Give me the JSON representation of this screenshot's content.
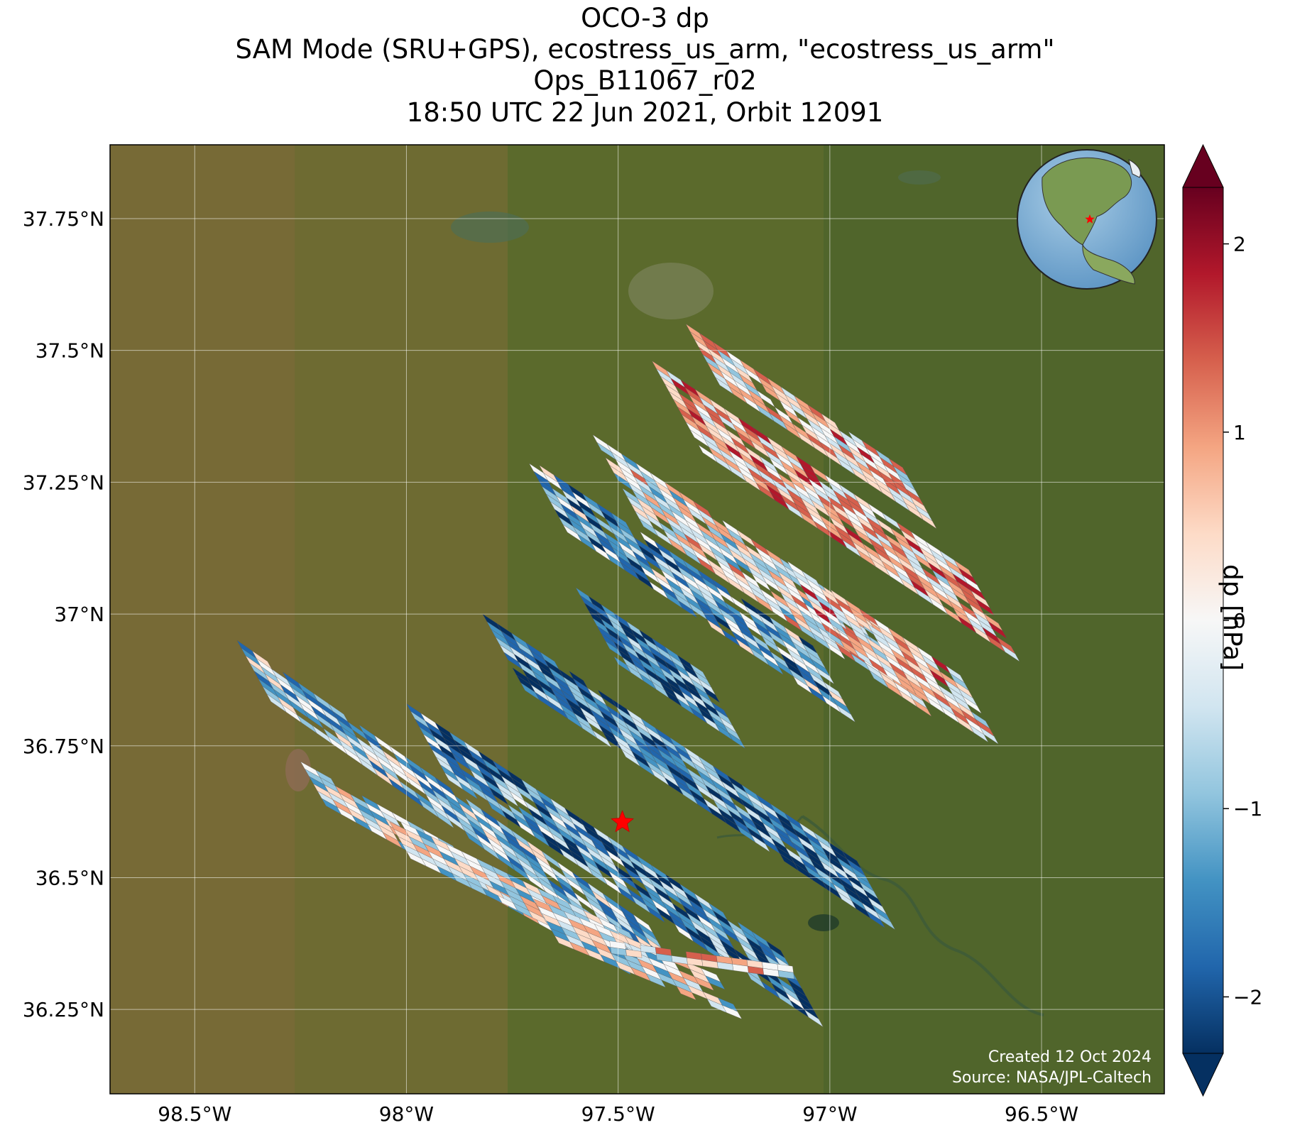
{
  "title": {
    "line1": "OCO-3 dp",
    "line2": "SAM Mode (SRU+GPS), ecostress_us_arm, \"ecostress_us_arm\"",
    "line3": "Ops_B11067_r02",
    "line4": "18:50 UTC 22 Jun 2021, Orbit 12091"
  },
  "map": {
    "extent": {
      "lon": [
        -98.7,
        -96.21
      ],
      "lat": [
        36.09,
        37.89
      ]
    },
    "lat_ticks": [
      {
        "value": 37.75,
        "label": "37.75°N"
      },
      {
        "value": 37.5,
        "label": "37.5°N"
      },
      {
        "value": 37.25,
        "label": "37.25°N"
      },
      {
        "value": 37.0,
        "label": "37°N"
      },
      {
        "value": 36.75,
        "label": "36.75°N"
      },
      {
        "value": 36.5,
        "label": "36.5°N"
      },
      {
        "value": 36.25,
        "label": "36.25°N"
      }
    ],
    "lon_ticks": [
      {
        "value": -98.5,
        "label": "98.5°W"
      },
      {
        "value": -98.0,
        "label": "98°W"
      },
      {
        "value": -97.5,
        "label": "97.5°W"
      },
      {
        "value": -97.0,
        "label": "97°W"
      },
      {
        "value": -96.5,
        "label": "96.5°W"
      }
    ],
    "target": {
      "lon": -97.49,
      "lat": 36.605,
      "marker": "red-star"
    },
    "inset_globe": {
      "marker": "red-star"
    },
    "credit_line1": "Created 12 Oct 2024",
    "credit_line2": "Source: NASA/JPL-Caltech",
    "colors": {
      "land": "#5b6a2c",
      "farmland": "#8a6a3e",
      "water": "#4f6d52",
      "target": "#ff0000"
    }
  },
  "colorbar": {
    "label": "dp [hPa]",
    "range": [
      -2.3,
      2.3
    ],
    "ticks": [
      {
        "value": 2,
        "label": "2"
      },
      {
        "value": 1,
        "label": "1"
      },
      {
        "value": 0,
        "label": "0"
      },
      {
        "value": -1,
        "label": "−1"
      },
      {
        "value": -2,
        "label": "−2"
      }
    ],
    "colormap": "RdBu_r",
    "extend": "both",
    "stops": [
      "#053061",
      "#2166ac",
      "#4393c3",
      "#92c5de",
      "#d1e5f0",
      "#f7f7f7",
      "#fddbc7",
      "#f4a582",
      "#d6604d",
      "#b2182b",
      "#67001f"
    ]
  }
}
